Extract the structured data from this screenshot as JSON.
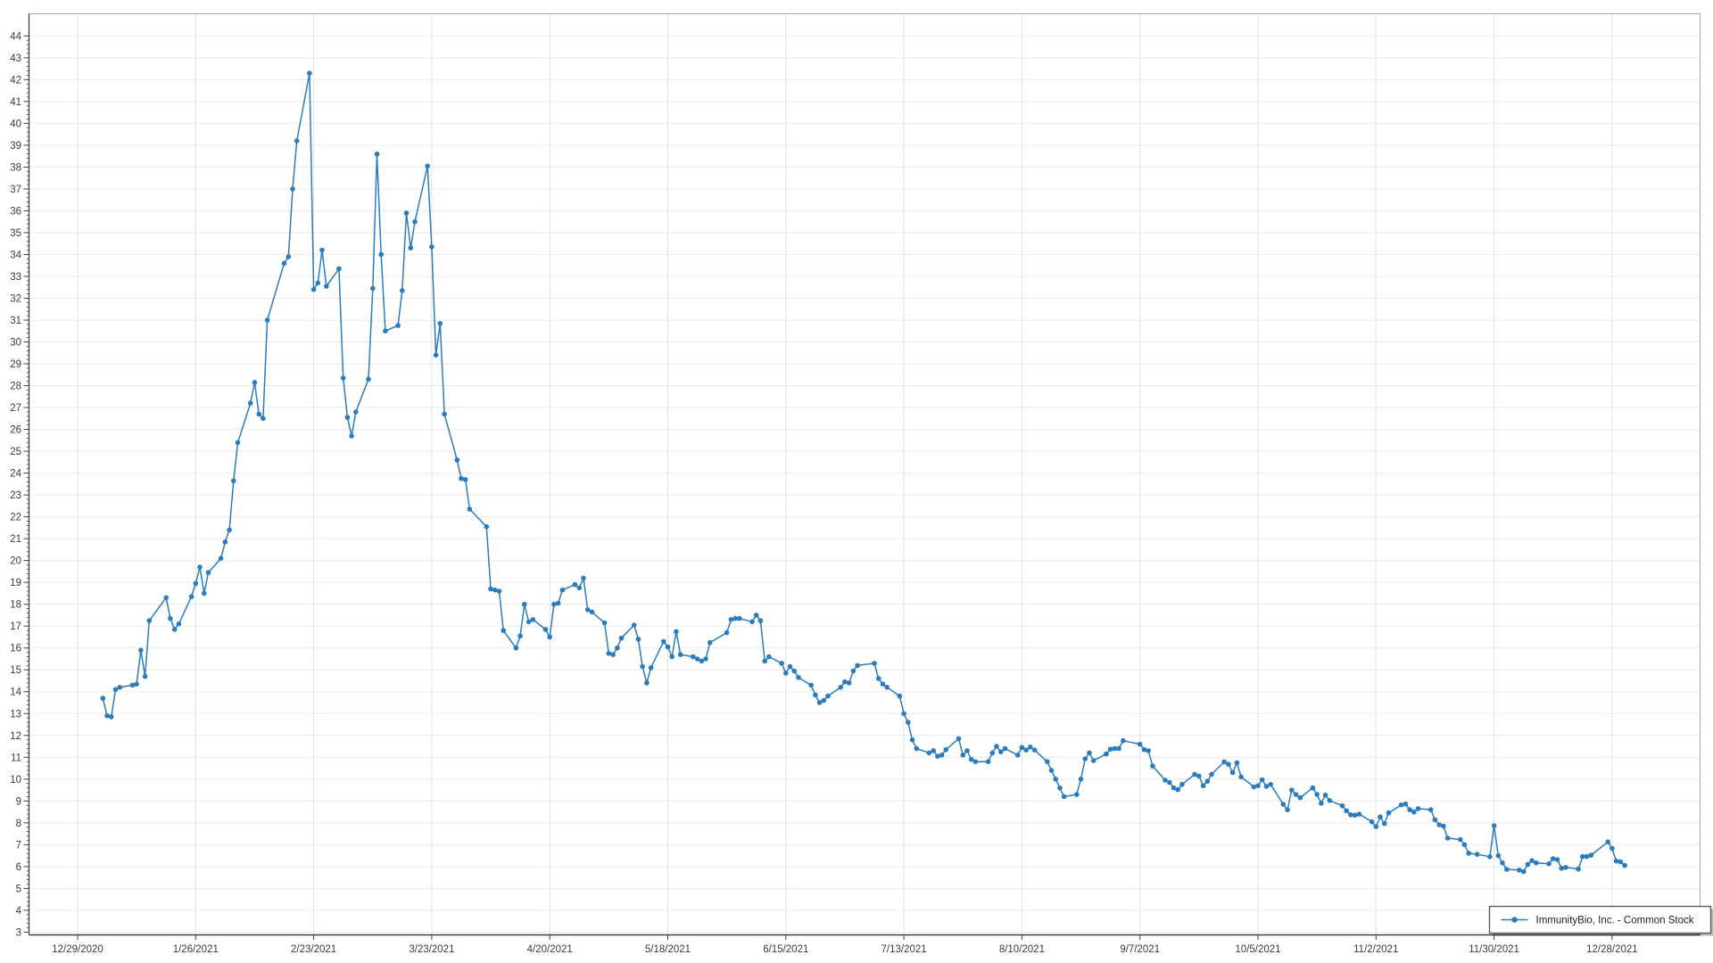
{
  "chart_data": {
    "type": "line",
    "title": "",
    "xlabel": "",
    "ylabel": "",
    "grid": true,
    "legend": {
      "position": "bottom-right",
      "label": "ImmunityBio, Inc. - Common Stock"
    },
    "colors": {
      "line": "#2b7cbd",
      "marker": "#2b7cbd",
      "grid_horizontal": "#eaeaea",
      "grid_vertical": "#e2e2e2",
      "frame": "#a8a8a8",
      "axis": "#3f3f3f",
      "label": "#3a3a3a",
      "legend_border": "#5a5a5a"
    },
    "y_axis": {
      "min": 3,
      "max": 44,
      "tick_step": 1,
      "minor_tick_step": 0.2
    },
    "x_axis": {
      "origin_date": "12/29/2020",
      "tick_labels": [
        "12/29/2020",
        "1/26/2021",
        "2/23/2021",
        "3/23/2021",
        "4/20/2021",
        "5/18/2021",
        "6/15/2021",
        "7/13/2021",
        "8/10/2021",
        "9/7/2021",
        "10/5/2021",
        "11/2/2021",
        "11/30/2021",
        "12/28/2021"
      ]
    },
    "series": [
      {
        "name": "ImmunityBio, Inc. - Common Stock",
        "dates": [
          "1/4/2021",
          "1/5/2021",
          "1/6/2021",
          "1/7/2021",
          "1/8/2021",
          "1/11/2021",
          "1/12/2021",
          "1/13/2021",
          "1/14/2021",
          "1/15/2021",
          "1/19/2021",
          "1/20/2021",
          "1/21/2021",
          "1/22/2021",
          "1/25/2021",
          "1/26/2021",
          "1/27/2021",
          "1/28/2021",
          "1/29/2021",
          "2/1/2021",
          "2/2/2021",
          "2/3/2021",
          "2/4/2021",
          "2/5/2021",
          "2/8/2021",
          "2/9/2021",
          "2/10/2021",
          "2/11/2021",
          "2/12/2021",
          "2/16/2021",
          "2/17/2021",
          "2/18/2021",
          "2/19/2021",
          "2/22/2021",
          "2/23/2021",
          "2/24/2021",
          "2/25/2021",
          "2/26/2021",
          "3/1/2021",
          "3/2/2021",
          "3/3/2021",
          "3/4/2021",
          "3/5/2021",
          "3/8/2021",
          "3/9/2021",
          "3/10/2021",
          "3/11/2021",
          "3/12/2021",
          "3/15/2021",
          "3/16/2021",
          "3/17/2021",
          "3/18/2021",
          "3/19/2021",
          "3/22/2021",
          "3/23/2021",
          "3/24/2021",
          "3/25/2021",
          "3/26/2021",
          "3/29/2021",
          "3/30/2021",
          "3/31/2021",
          "4/1/2021",
          "4/5/2021",
          "4/6/2021",
          "4/7/2021",
          "4/8/2021",
          "4/9/2021",
          "4/12/2021",
          "4/13/2021",
          "4/14/2021",
          "4/15/2021",
          "4/16/2021",
          "4/19/2021",
          "4/20/2021",
          "4/21/2021",
          "4/22/2021",
          "4/23/2021",
          "4/26/2021",
          "4/27/2021",
          "4/28/2021",
          "4/29/2021",
          "4/30/2021",
          "5/3/2021",
          "5/4/2021",
          "5/5/2021",
          "5/6/2021",
          "5/7/2021",
          "5/10/2021",
          "5/11/2021",
          "5/12/2021",
          "5/13/2021",
          "5/14/2021",
          "5/17/2021",
          "5/18/2021",
          "5/19/2021",
          "5/20/2021",
          "5/21/2021",
          "5/24/2021",
          "5/25/2021",
          "5/26/2021",
          "5/27/2021",
          "5/28/2021",
          "6/1/2021",
          "6/2/2021",
          "6/3/2021",
          "6/4/2021",
          "6/7/2021",
          "6/8/2021",
          "6/9/2021",
          "6/10/2021",
          "6/11/2021",
          "6/14/2021",
          "6/15/2021",
          "6/16/2021",
          "6/17/2021",
          "6/18/2021",
          "6/21/2021",
          "6/22/2021",
          "6/23/2021",
          "6/24/2021",
          "6/25/2021",
          "6/28/2021",
          "6/29/2021",
          "6/30/2021",
          "7/1/2021",
          "7/2/2021",
          "7/6/2021",
          "7/7/2021",
          "7/8/2021",
          "7/9/2021",
          "7/12/2021",
          "7/13/2021",
          "7/14/2021",
          "7/15/2021",
          "7/16/2021",
          "7/19/2021",
          "7/20/2021",
          "7/21/2021",
          "7/22/2021",
          "7/23/2021",
          "7/26/2021",
          "7/27/2021",
          "7/28/2021",
          "7/29/2021",
          "7/30/2021",
          "8/2/2021",
          "8/3/2021",
          "8/4/2021",
          "8/5/2021",
          "8/6/2021",
          "8/9/2021",
          "8/10/2021",
          "8/11/2021",
          "8/12/2021",
          "8/13/2021",
          "8/16/2021",
          "8/17/2021",
          "8/18/2021",
          "8/19/2021",
          "8/20/2021",
          "8/23/2021",
          "8/24/2021",
          "8/25/2021",
          "8/26/2021",
          "8/27/2021",
          "8/30/2021",
          "8/31/2021",
          "9/1/2021",
          "9/2/2021",
          "9/3/2021",
          "9/7/2021",
          "9/8/2021",
          "9/9/2021",
          "9/10/2021",
          "9/13/2021",
          "9/14/2021",
          "9/15/2021",
          "9/16/2021",
          "9/17/2021",
          "9/20/2021",
          "9/21/2021",
          "9/22/2021",
          "9/23/2021",
          "9/24/2021",
          "9/27/2021",
          "9/28/2021",
          "9/29/2021",
          "9/30/2021",
          "10/1/2021",
          "10/4/2021",
          "10/5/2021",
          "10/6/2021",
          "10/7/2021",
          "10/8/2021",
          "10/11/2021",
          "10/12/2021",
          "10/13/2021",
          "10/14/2021",
          "10/15/2021",
          "10/18/2021",
          "10/19/2021",
          "10/20/2021",
          "10/21/2021",
          "10/22/2021",
          "10/25/2021",
          "10/26/2021",
          "10/27/2021",
          "10/28/2021",
          "10/29/2021",
          "11/1/2021",
          "11/2/2021",
          "11/3/2021",
          "11/4/2021",
          "11/5/2021",
          "11/8/2021",
          "11/9/2021",
          "11/10/2021",
          "11/11/2021",
          "11/12/2021",
          "11/15/2021",
          "11/16/2021",
          "11/17/2021",
          "11/18/2021",
          "11/19/2021",
          "11/22/2021",
          "11/23/2021",
          "11/24/2021",
          "11/26/2021",
          "11/29/2021",
          "11/30/2021",
          "12/1/2021",
          "12/2/2021",
          "12/3/2021",
          "12/6/2021",
          "12/7/2021",
          "12/8/2021",
          "12/9/2021",
          "12/10/2021",
          "12/13/2021",
          "12/14/2021",
          "12/15/2021",
          "12/16/2021",
          "12/17/2021",
          "12/20/2021",
          "12/21/2021",
          "12/22/2021",
          "12/23/2021",
          "12/27/2021",
          "12/28/2021",
          "12/29/2021",
          "12/30/2021",
          "12/31/2021"
        ],
        "values": [
          13.7,
          12.9,
          12.85,
          14.1,
          14.2,
          14.3,
          14.35,
          15.9,
          14.7,
          17.25,
          18.3,
          17.35,
          16.85,
          17.1,
          18.35,
          18.95,
          19.7,
          18.5,
          19.45,
          20.1,
          20.85,
          21.4,
          23.65,
          25.4,
          27.2,
          28.15,
          26.7,
          26.5,
          31.0,
          33.6,
          33.9,
          37.0,
          39.2,
          42.3,
          32.4,
          32.7,
          34.2,
          32.55,
          33.35,
          28.35,
          26.55,
          25.7,
          26.8,
          28.3,
          32.45,
          38.6,
          34.0,
          30.5,
          30.75,
          32.35,
          35.9,
          34.3,
          35.5,
          38.05,
          34.35,
          29.4,
          30.85,
          26.7,
          24.6,
          23.75,
          23.7,
          22.35,
          21.55,
          18.7,
          18.65,
          18.6,
          16.8,
          16.0,
          16.55,
          18.0,
          17.2,
          17.3,
          16.85,
          16.5,
          18.0,
          18.05,
          18.65,
          18.9,
          18.75,
          19.2,
          17.75,
          17.65,
          17.15,
          15.75,
          15.7,
          16.0,
          16.45,
          17.05,
          16.4,
          15.15,
          14.4,
          15.1,
          16.3,
          16.05,
          15.6,
          16.75,
          15.7,
          15.6,
          15.5,
          15.4,
          15.5,
          16.25,
          16.7,
          17.3,
          17.35,
          17.35,
          17.2,
          17.5,
          17.25,
          15.4,
          15.6,
          15.3,
          14.85,
          15.15,
          14.95,
          14.65,
          14.3,
          13.85,
          13.5,
          13.6,
          13.8,
          14.2,
          14.45,
          14.4,
          14.95,
          15.2,
          15.3,
          14.6,
          14.35,
          14.2,
          13.8,
          13.0,
          12.6,
          11.8,
          11.4,
          11.2,
          11.3,
          11.05,
          11.1,
          11.35,
          11.85,
          11.1,
          11.3,
          10.9,
          10.8,
          10.8,
          11.2,
          11.5,
          11.25,
          11.4,
          11.1,
          11.45,
          11.33,
          11.47,
          11.33,
          10.8,
          10.4,
          10.0,
          9.6,
          9.2,
          9.3,
          10.0,
          10.93,
          11.2,
          10.85,
          11.15,
          11.37,
          11.4,
          11.4,
          11.76,
          11.6,
          11.35,
          11.3,
          10.6,
          9.95,
          9.85,
          9.6,
          9.52,
          9.76,
          10.22,
          10.14,
          9.7,
          9.9,
          10.22,
          10.79,
          10.68,
          10.3,
          10.75,
          10.1,
          9.65,
          9.7,
          9.97,
          9.67,
          9.76,
          8.85,
          8.6,
          9.5,
          9.3,
          9.15,
          9.6,
          9.3,
          8.9,
          9.27,
          9.02,
          8.78,
          8.55,
          8.37,
          8.35,
          8.4,
          8.05,
          7.83,
          8.27,
          7.97,
          8.46,
          8.82,
          8.86,
          8.6,
          8.5,
          8.65,
          8.6,
          8.14,
          7.91,
          7.85,
          7.3,
          7.24,
          7.0,
          6.61,
          6.56,
          6.45,
          7.87,
          6.5,
          6.17,
          5.87,
          5.84,
          5.77,
          6.1,
          6.27,
          6.17,
          6.13,
          6.36,
          6.32,
          5.92,
          5.96,
          5.89,
          6.46,
          6.46,
          6.52,
          7.13,
          6.83,
          6.25,
          6.22,
          6.05
        ]
      }
    ]
  }
}
